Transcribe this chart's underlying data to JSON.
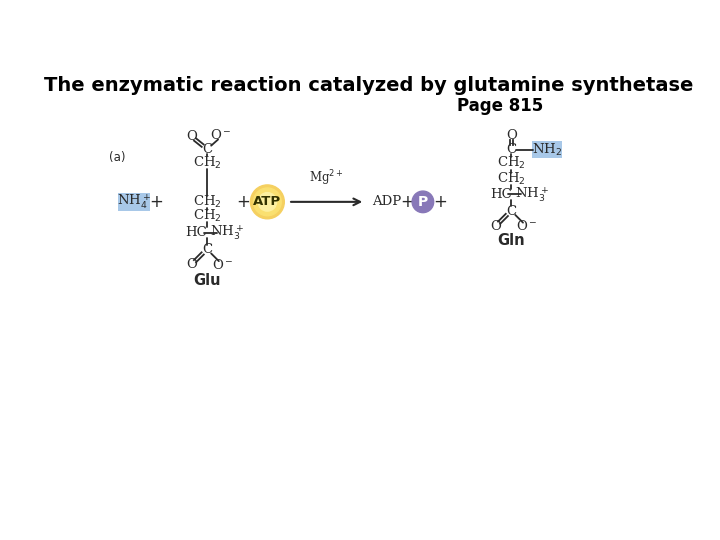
{
  "title": "The enzymatic reaction catalyzed by glutamine synthetase",
  "page": "Page 815",
  "bg_color": "#ffffff",
  "title_fontsize": 14,
  "page_fontsize": 12,
  "label_a": "(a)",
  "nh4_color": "#a8c8e8",
  "nh2_color": "#a8c8e8",
  "atp_color": "#f5d060",
  "p_color": "#8878b8",
  "text_color": "#2a2a2a",
  "bond_color": "#2a2a2a"
}
